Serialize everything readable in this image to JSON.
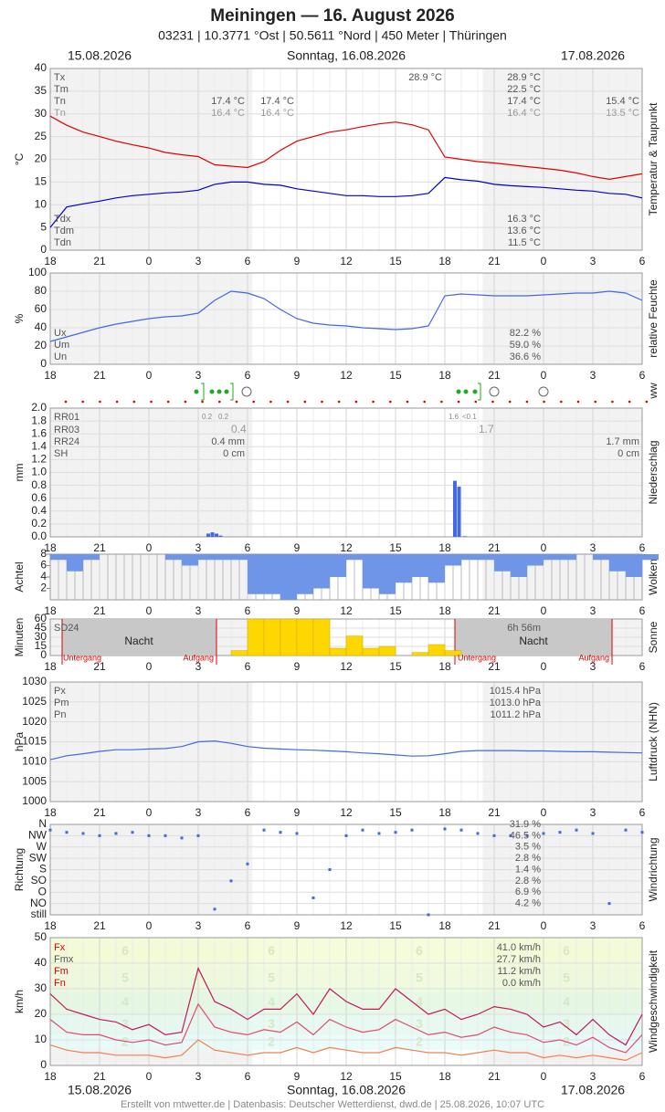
{
  "header": {
    "title": "Meiningen  —  16. August 2026",
    "subtitle": "03231  |  10.3771 °Ost  |  50.5611 °Nord  |  450 Meter  |  Thüringen",
    "date_left": "15.08.2026",
    "date_center": "Sonntag, 16.08.2026",
    "date_right": "17.08.2026"
  },
  "footer": "Erstellt von mtwetter.de | Datenbasis: Deutscher Wetterdienst, dwd.de | 25.08.2026, 10:07 UTC",
  "ww_label": "ww",
  "time": {
    "x": [
      18,
      19,
      20,
      21,
      22,
      23,
      24,
      25,
      26,
      27,
      28,
      29,
      30,
      31,
      32,
      33,
      34,
      35,
      36,
      37,
      38,
      39,
      40,
      41,
      42,
      43,
      44,
      45,
      46,
      47,
      48,
      49,
      50,
      51,
      52,
      53,
      54
    ],
    "xlim": [
      18,
      54
    ],
    "xticks": [
      18,
      21,
      {
        "value": 24,
        "label": "0"
      },
      {
        "value": 27,
        "label": "3"
      },
      {
        "value": 30,
        "label": "6"
      },
      {
        "value": 33,
        "label": "9"
      },
      {
        "value": 36,
        "label": "12"
      },
      {
        "value": 39,
        "label": "15"
      },
      {
        "value": 42,
        "label": "18"
      },
      {
        "value": 45,
        "label": "21"
      },
      {
        "value": 48,
        "label": "0"
      },
      {
        "value": 51,
        "label": "3"
      },
      {
        "value": 54,
        "label": "6"
      }
    ]
  },
  "chart_data": [
    {
      "type": "line",
      "ylabel": "°C",
      "side_label": "Temperatur & Taupunkt",
      "ylim": [
        0,
        40
      ],
      "yticks": [
        0,
        5,
        10,
        15,
        20,
        25,
        30,
        35,
        40
      ],
      "grid": true,
      "series": [
        {
          "color": "#e00000",
          "values": [
            29.5,
            27.5,
            26,
            25,
            24,
            23.2,
            22.5,
            21.5,
            21,
            20.6,
            18.8,
            18.5,
            18.2,
            19.5,
            22,
            24,
            25,
            26,
            26.5,
            27.2,
            27.8,
            28.2,
            27.6,
            26.5,
            20.5,
            20,
            19.5,
            19.2,
            18.8,
            18.4,
            18,
            17.6,
            17,
            16.2,
            15.6,
            16.2,
            16.8
          ]
        },
        {
          "color": "#0000cc",
          "values": [
            5,
            9.5,
            10.2,
            10.8,
            11.5,
            12,
            12.3,
            12.6,
            12.8,
            13.2,
            14.5,
            15,
            15,
            14.5,
            14.3,
            13.5,
            13,
            12.5,
            12,
            12,
            11.8,
            11.8,
            12,
            12.5,
            16,
            15.5,
            15.2,
            14.5,
            14.2,
            14,
            13.8,
            13.5,
            13.2,
            13,
            12.5,
            12.3,
            11.5
          ]
        }
      ],
      "annotations": [
        "Tx",
        "Tm",
        "Tn",
        "Tn",
        "17.4 °C",
        "16.4 °C",
        "17.4 °C",
        "16.4 °C",
        "28.9 °C",
        "28.9 °C",
        "22.5 °C",
        "17.4 °C",
        "16.4 °C",
        "15.4 °C",
        "13.5 °C",
        "Tdx",
        "Tdm",
        "Tdn",
        "16.3 °C",
        "13.6 °C",
        "11.5 °C"
      ]
    },
    {
      "type": "line",
      "ylabel": "%",
      "side_label": "relative Feuchte",
      "ylim": [
        0,
        100
      ],
      "yticks": [
        0,
        20,
        40,
        60,
        80,
        100
      ],
      "grid": true,
      "series": [
        {
          "color": "#4169e1",
          "values": [
            25,
            30,
            35,
            40,
            44,
            47,
            50,
            52,
            53,
            56,
            70,
            80,
            78,
            72,
            60,
            50,
            45,
            43,
            42,
            40,
            39,
            38,
            39,
            42,
            75,
            77,
            76,
            75,
            75,
            75,
            76,
            77,
            78,
            78,
            80,
            78,
            70
          ]
        }
      ],
      "annotations": [
        "Ux",
        "Um",
        "Un",
        "82.2 %",
        "59.0 %",
        "36.6 %"
      ]
    },
    {
      "type": "bar",
      "ylabel": "mm",
      "side_label": "Niederschlag",
      "ylim": [
        0,
        2
      ],
      "yticks": [
        {
          "value": 0,
          "label": "0.0"
        },
        {
          "value": 0.2,
          "label": "0.2"
        },
        {
          "value": 0.4,
          "label": "0.4"
        },
        {
          "value": 0.6,
          "label": "0.6"
        },
        {
          "value": 0.8,
          "label": "0.8"
        },
        {
          "value": 1,
          "label": "1.0"
        },
        {
          "value": 1.2,
          "label": "1.2"
        },
        {
          "value": 1.4,
          "label": "1.4"
        },
        {
          "value": 1.6,
          "label": "1.6"
        },
        {
          "value": 1.8,
          "label": "1.8"
        },
        {
          "value": 2,
          "label": "2.0"
        }
      ],
      "grid": true,
      "series": [
        {
          "color": "#4169e1",
          "x": [
            27.5,
            27.75,
            28,
            28.25,
            42.5,
            42.75,
            43.1
          ],
          "values": [
            0.05,
            0.07,
            0.05,
            0.02,
            0.87,
            0.78,
            0.01
          ]
        }
      ],
      "annotations": [
        "RR01",
        "RR03",
        "RR24",
        "SH",
        "0.2",
        "0.2",
        "0.4",
        "0.4 mm",
        "0 cm",
        "1.6",
        "<0.1",
        "1.7",
        "1.7 mm",
        "0 cm"
      ]
    },
    {
      "type": "bar",
      "orientation": "down",
      "ylabel": "Achtel",
      "side_label": "Wolken",
      "ylim": [
        0,
        8
      ],
      "yticks": [
        2,
        4,
        6,
        8
      ],
      "grid": false,
      "series": [
        {
          "color": "#6f95e8",
          "values": [
            1,
            3,
            1,
            0,
            0,
            0,
            0,
            1,
            2,
            1,
            1,
            1,
            7,
            7,
            8,
            7,
            6,
            4,
            1,
            6,
            7,
            5,
            4,
            5,
            2,
            1,
            1,
            3,
            4,
            2,
            1,
            1,
            0,
            1,
            3,
            4,
            1
          ]
        }
      ],
      "annotations": []
    },
    {
      "type": "bar",
      "ylabel": "Minuten",
      "side_label": "Sonne",
      "ylim": [
        0,
        60
      ],
      "yticks": [
        0,
        15,
        30,
        45,
        60
      ],
      "grid": true,
      "series": [
        {
          "color": "#ffd700",
          "x": [
            29,
            30,
            31,
            32,
            33,
            34,
            35,
            36,
            37,
            38,
            39,
            40,
            41,
            42
          ],
          "values": [
            8,
            60,
            60,
            60,
            60,
            60,
            12,
            32,
            12,
            15,
            0,
            5,
            18,
            8
          ]
        }
      ],
      "annotations": [
        "SD24",
        "Nacht",
        "Untergang",
        "Aufgang",
        "6h 56m",
        "Nacht",
        "Untergang",
        "Aufgang"
      ]
    },
    {
      "type": "line",
      "ylabel": "hPa",
      "side_label": "Luftdruck (NHN)",
      "ylim": [
        1000,
        1030
      ],
      "yticks": [
        1000,
        1005,
        1010,
        1015,
        1020,
        1025,
        1030
      ],
      "grid": true,
      "series": [
        {
          "color": "#4169e1",
          "values": [
            1010.5,
            1011.5,
            1012,
            1012.6,
            1013,
            1013,
            1013.2,
            1013.3,
            1013.8,
            1015,
            1015.2,
            1014.6,
            1013.8,
            1013.4,
            1013.2,
            1013,
            1012.9,
            1012.7,
            1012.5,
            1012.2,
            1012,
            1011.7,
            1011.4,
            1011.5,
            1012,
            1012.6,
            1012.8,
            1012.8,
            1012.8,
            1012.7,
            1012.7,
            1012.6,
            1012.5,
            1012.5,
            1012.4,
            1012.3,
            1012.2
          ]
        }
      ],
      "annotations": [
        "Px",
        "Pm",
        "Pn",
        "1015.4 hPa",
        "1013.0 hPa",
        "1011.2 hPa"
      ]
    },
    {
      "type": "scatter",
      "ylabel": "Richtung",
      "side_label": "Windrichtung",
      "ylim": [
        0,
        8
      ],
      "yticks": [
        {
          "value": 8,
          "label": "N"
        },
        {
          "value": 7,
          "label": "NW"
        },
        {
          "value": 6,
          "label": "W"
        },
        {
          "value": 5,
          "label": "SW"
        },
        {
          "value": 4,
          "label": "S"
        },
        {
          "value": 3,
          "label": "SO"
        },
        {
          "value": 2,
          "label": "O"
        },
        {
          "value": 1,
          "label": "NO"
        },
        {
          "value": 0,
          "label": "still"
        }
      ],
      "grid": true,
      "series": [
        {
          "color": "#4169e1",
          "values": [
            7.5,
            7.3,
            7.2,
            7,
            7.2,
            7.3,
            7,
            7,
            6.8,
            7,
            0.5,
            3,
            4.5,
            7.5,
            7.3,
            7.2,
            1.5,
            4,
            7,
            7.5,
            7.2,
            7.3,
            7.5,
            0,
            7.6,
            7.5,
            7.2,
            7,
            7,
            7,
            7.2,
            7.3,
            7.5,
            7.2,
            1,
            7.5,
            7.3
          ]
        }
      ],
      "annotations": [
        "31.9 %",
        "46.5 %",
        "3.5 %",
        "2.8 %",
        "1.4 %",
        "2.8 %",
        "6.9 %",
        "4.2 %"
      ]
    },
    {
      "type": "line",
      "ylabel": "km/h",
      "side_label": "Windgeschwindigkeit",
      "ylim": [
        0,
        50
      ],
      "yticks": [
        0,
        10,
        20,
        30,
        40,
        50
      ],
      "grid": true,
      "bands": [
        {
          "label": "2",
          "range": [
            6,
            12
          ],
          "color": "#e6fbf8"
        },
        {
          "label": "3",
          "range": [
            12,
            20
          ],
          "color": "#e3f8ef"
        },
        {
          "label": "4",
          "range": [
            20,
            29
          ],
          "color": "#e3f7e0"
        },
        {
          "label": "5",
          "range": [
            29,
            39
          ],
          "color": "#ecf9d8"
        },
        {
          "label": "6",
          "range": [
            39,
            50
          ],
          "color": "#f2fbd4"
        }
      ],
      "series": [
        {
          "color": "#c2185b",
          "values": [
            28,
            22,
            20,
            18,
            17,
            14,
            16,
            12,
            13,
            38,
            25,
            22,
            18,
            22,
            22,
            28,
            20,
            30,
            25,
            22,
            22,
            30,
            25,
            20,
            22,
            18,
            20,
            23,
            22,
            20,
            15,
            17,
            12,
            18,
            12,
            8,
            20
          ]
        },
        {
          "color": "#e04a70",
          "values": [
            18,
            13,
            12,
            12,
            10,
            9,
            10,
            8,
            9,
            24,
            15,
            13,
            12,
            14,
            13,
            17,
            12,
            18,
            15,
            13,
            14,
            18,
            15,
            12,
            13,
            11,
            12,
            15,
            13,
            12,
            9,
            10,
            8,
            11,
            7,
            5,
            12
          ]
        },
        {
          "color": "#f08050",
          "values": [
            8,
            6,
            5,
            5,
            4,
            4,
            4,
            3,
            4,
            10,
            6,
            5,
            4,
            5,
            5,
            7,
            5,
            7,
            6,
            5,
            5,
            7,
            6,
            5,
            5,
            4,
            5,
            6,
            5,
            5,
            3,
            4,
            3,
            4,
            3,
            2,
            5
          ]
        }
      ],
      "annotations": [
        "Fx",
        "Fmx",
        "Fm",
        "Fn",
        "41.0 km/h",
        "27.7 km/h",
        "11.2 km/h",
        "0.0 km/h"
      ]
    }
  ]
}
